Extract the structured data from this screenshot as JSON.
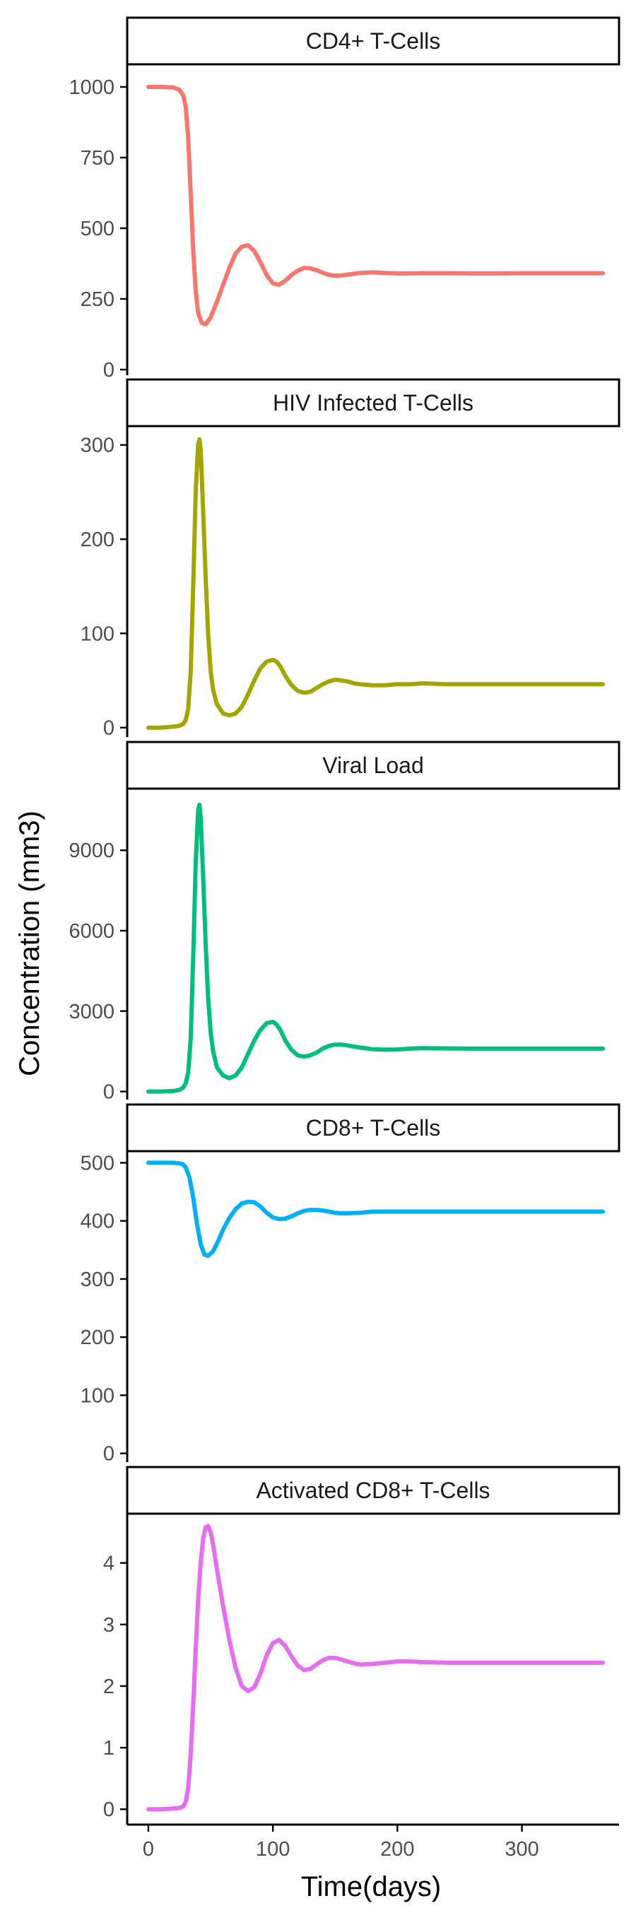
{
  "chart_data": {
    "type": "line",
    "layout": "faceted-vertical",
    "xlabel": "Time(days)",
    "ylabel": "Concentration (mm3)",
    "xlim": [
      -17,
      378
    ],
    "x_ticks": [
      0,
      100,
      200,
      300
    ],
    "grid": false,
    "legend": "none",
    "panels": [
      {
        "title": "CD4+ T-Cells",
        "color": "#F8766D",
        "ylim": [
          -20,
          1080
        ],
        "y_ticks": [
          0,
          250,
          500,
          750,
          1000
        ],
        "x": [
          0,
          10,
          20,
          25,
          28,
          30,
          32,
          34,
          36,
          38,
          40,
          43,
          46,
          50,
          55,
          60,
          65,
          70,
          75,
          80,
          85,
          90,
          95,
          100,
          105,
          110,
          115,
          120,
          125,
          130,
          135,
          140,
          145,
          150,
          155,
          160,
          170,
          180,
          190,
          200,
          210,
          220,
          240,
          260,
          280,
          300,
          320,
          340,
          365
        ],
        "y": [
          1000,
          1000,
          998,
          990,
          970,
          930,
          820,
          620,
          420,
          280,
          200,
          165,
          160,
          185,
          240,
          300,
          360,
          410,
          435,
          440,
          420,
          380,
          335,
          305,
          300,
          315,
          335,
          350,
          360,
          358,
          352,
          343,
          335,
          332,
          333,
          336,
          342,
          344,
          342,
          340,
          340,
          341,
          341,
          340,
          340,
          341,
          341,
          341,
          341
        ]
      },
      {
        "title": "HIV Infected T-Cells",
        "color": "#A3A500",
        "ylim": [
          -10,
          320
        ],
        "y_ticks": [
          0,
          100,
          200,
          300
        ],
        "x": [
          0,
          10,
          20,
          25,
          28,
          30,
          32,
          34,
          36,
          38,
          40,
          41,
          42,
          44,
          46,
          48,
          50,
          52,
          55,
          60,
          65,
          70,
          75,
          80,
          85,
          90,
          95,
          100,
          103,
          106,
          110,
          115,
          120,
          125,
          130,
          135,
          140,
          145,
          150,
          155,
          160,
          165,
          170,
          180,
          190,
          200,
          210,
          220,
          240,
          260,
          280,
          300,
          320,
          340,
          365
        ],
        "y": [
          0,
          0,
          1,
          2,
          4,
          8,
          20,
          60,
          150,
          250,
          300,
          306,
          295,
          230,
          160,
          100,
          60,
          40,
          25,
          15,
          13,
          15,
          22,
          35,
          50,
          63,
          70,
          72,
          70,
          65,
          55,
          45,
          39,
          37,
          38,
          42,
          46,
          49,
          51,
          50,
          49,
          47,
          46,
          45,
          45,
          46,
          46,
          47,
          46,
          46,
          46,
          46,
          46,
          46,
          46
        ]
      },
      {
        "title": "Viral Load",
        "color": "#00BF7D",
        "ylim": [
          -300,
          11300
        ],
        "y_ticks": [
          0,
          3000,
          6000,
          9000
        ],
        "x": [
          0,
          10,
          20,
          25,
          28,
          30,
          32,
          34,
          36,
          38,
          40,
          41,
          42,
          44,
          46,
          48,
          50,
          52,
          55,
          60,
          65,
          70,
          75,
          80,
          85,
          90,
          95,
          100,
          103,
          106,
          110,
          115,
          120,
          125,
          130,
          135,
          140,
          145,
          150,
          155,
          160,
          165,
          170,
          180,
          190,
          200,
          210,
          220,
          240,
          260,
          280,
          300,
          320,
          340,
          365
        ],
        "y": [
          0,
          0,
          20,
          60,
          150,
          300,
          700,
          2000,
          5000,
          8500,
          10500,
          10700,
          10200,
          8000,
          5500,
          3500,
          2200,
          1500,
          900,
          600,
          500,
          600,
          900,
          1400,
          1900,
          2300,
          2550,
          2600,
          2500,
          2300,
          1900,
          1550,
          1350,
          1300,
          1350,
          1450,
          1600,
          1700,
          1750,
          1750,
          1720,
          1680,
          1640,
          1580,
          1560,
          1570,
          1600,
          1620,
          1610,
          1600,
          1600,
          1600,
          1600,
          1600,
          1600
        ]
      },
      {
        "title": "CD8+ T-Cells",
        "color": "#00B0F6",
        "ylim": [
          -15,
          520
        ],
        "y_ticks": [
          0,
          100,
          200,
          300,
          400,
          500
        ],
        "x": [
          0,
          10,
          20,
          25,
          28,
          30,
          33,
          36,
          39,
          42,
          45,
          48,
          52,
          56,
          60,
          65,
          70,
          75,
          80,
          85,
          90,
          95,
          100,
          105,
          110,
          115,
          120,
          125,
          130,
          135,
          140,
          145,
          150,
          155,
          160,
          170,
          180,
          190,
          200,
          210,
          220,
          240,
          260,
          280,
          300,
          320,
          340,
          365
        ],
        "y": [
          500,
          500,
          500,
          499,
          497,
          492,
          475,
          440,
          395,
          360,
          342,
          340,
          348,
          365,
          385,
          405,
          420,
          430,
          433,
          432,
          425,
          414,
          406,
          403,
          404,
          408,
          413,
          417,
          419,
          419,
          418,
          416,
          414,
          413,
          413,
          414,
          416,
          416,
          416,
          416,
          416,
          416,
          416,
          416,
          416,
          416,
          416,
          416
        ]
      },
      {
        "title": "Activated CD8+ T-Cells",
        "color": "#E76BF3",
        "ylim": [
          -0.25,
          4.8
        ],
        "y_ticks": [
          0,
          1,
          2,
          3,
          4
        ],
        "x": [
          0,
          10,
          20,
          25,
          28,
          30,
          32,
          34,
          36,
          38,
          40,
          42,
          44,
          46,
          48,
          50,
          52,
          55,
          60,
          65,
          70,
          75,
          80,
          85,
          90,
          95,
          100,
          105,
          110,
          115,
          120,
          125,
          130,
          135,
          140,
          145,
          150,
          155,
          160,
          165,
          170,
          180,
          190,
          200,
          210,
          220,
          240,
          260,
          280,
          300,
          320,
          340,
          365
        ],
        "y": [
          0,
          0,
          0.01,
          0.02,
          0.05,
          0.12,
          0.35,
          0.9,
          1.7,
          2.6,
          3.4,
          4.0,
          4.4,
          4.58,
          4.6,
          4.5,
          4.3,
          3.9,
          3.3,
          2.75,
          2.3,
          2.0,
          1.92,
          1.98,
          2.2,
          2.5,
          2.7,
          2.75,
          2.65,
          2.48,
          2.33,
          2.26,
          2.28,
          2.35,
          2.42,
          2.46,
          2.46,
          2.43,
          2.4,
          2.37,
          2.35,
          2.36,
          2.38,
          2.4,
          2.4,
          2.39,
          2.38,
          2.38,
          2.38,
          2.38,
          2.38,
          2.38,
          2.38
        ]
      }
    ]
  }
}
